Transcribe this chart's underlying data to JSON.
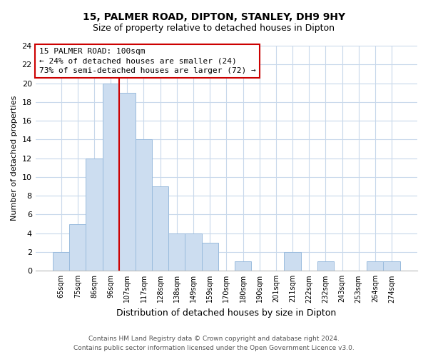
{
  "title": "15, PALMER ROAD, DIPTON, STANLEY, DH9 9HY",
  "subtitle": "Size of property relative to detached houses in Dipton",
  "xlabel": "Distribution of detached houses by size in Dipton",
  "ylabel": "Number of detached properties",
  "bar_labels": [
    "65sqm",
    "75sqm",
    "86sqm",
    "96sqm",
    "107sqm",
    "117sqm",
    "128sqm",
    "138sqm",
    "149sqm",
    "159sqm",
    "170sqm",
    "180sqm",
    "190sqm",
    "201sqm",
    "211sqm",
    "222sqm",
    "232sqm",
    "243sqm",
    "253sqm",
    "264sqm",
    "274sqm"
  ],
  "bar_values": [
    2,
    5,
    12,
    20,
    19,
    14,
    9,
    4,
    4,
    3,
    0,
    1,
    0,
    0,
    2,
    0,
    1,
    0,
    0,
    1,
    1
  ],
  "bar_color": "#ccddf0",
  "bar_edge_color": "#99bbdd",
  "highlight_line_color": "#cc0000",
  "ylim": [
    0,
    24
  ],
  "yticks": [
    0,
    2,
    4,
    6,
    8,
    10,
    12,
    14,
    16,
    18,
    20,
    22,
    24
  ],
  "annotation_line1": "15 PALMER ROAD: 100sqm",
  "annotation_line2": "← 24% of detached houses are smaller (24)",
  "annotation_line3": "73% of semi-detached houses are larger (72) →",
  "annotation_box_color": "#ffffff",
  "annotation_box_edge": "#cc0000",
  "footer_line1": "Contains HM Land Registry data © Crown copyright and database right 2024.",
  "footer_line2": "Contains public sector information licensed under the Open Government Licence v3.0.",
  "background_color": "#ffffff",
  "grid_color": "#c8d8eb"
}
